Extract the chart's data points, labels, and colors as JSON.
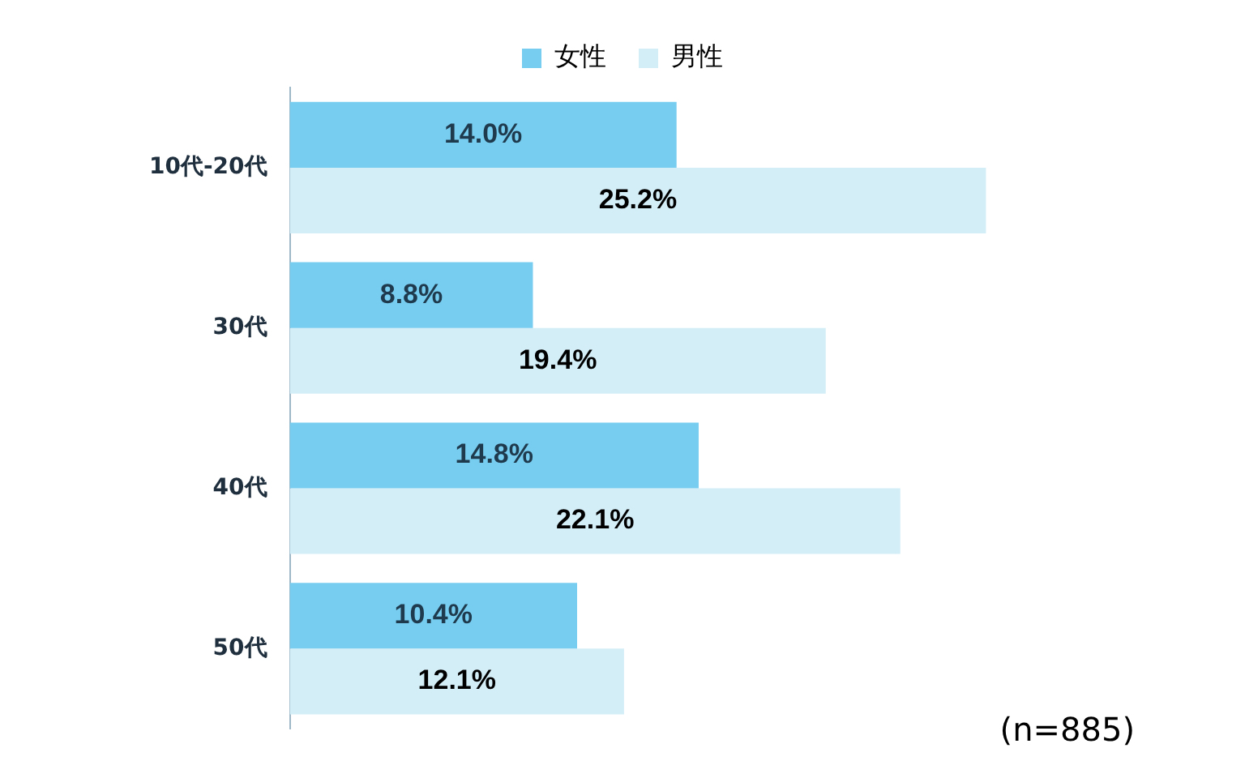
{
  "chart_data": {
    "type": "bar",
    "orientation": "horizontal",
    "categories": [
      "10代-20代",
      "30代",
      "40代",
      "50代"
    ],
    "series": [
      {
        "name": "女性",
        "color": "#77cdf0",
        "values": [
          14.0,
          8.8,
          14.8,
          10.4
        ],
        "value_labels": [
          "14.0%",
          "8.8%",
          "14.8%",
          "10.4%"
        ]
      },
      {
        "name": "男性",
        "color": "#d4eef8",
        "values": [
          25.2,
          19.4,
          22.1,
          12.1
        ],
        "value_labels": [
          "25.2%",
          "19.4%",
          "22.1%",
          "12.1%"
        ]
      }
    ],
    "legend": "top",
    "tick_labels": "y",
    "annotations": [
      "(n=885)"
    ]
  }
}
